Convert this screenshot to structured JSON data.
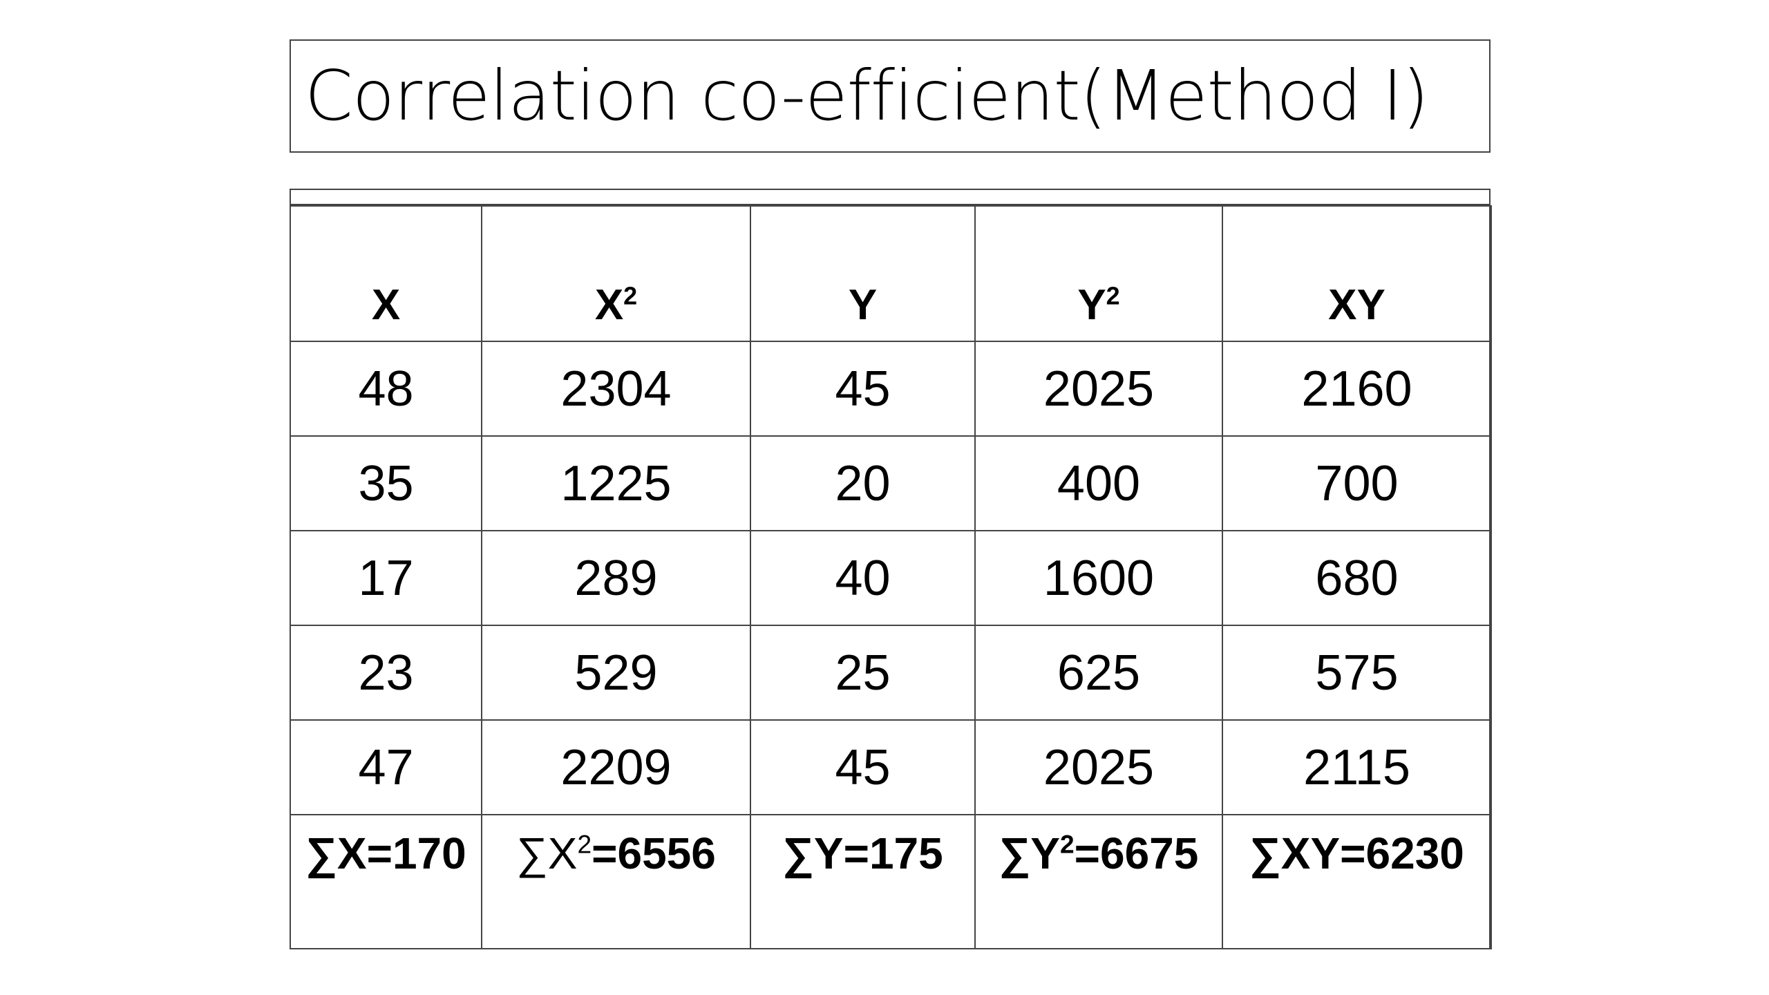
{
  "title": "Correlation co-efficient(Method I)",
  "table": {
    "headers": [
      {
        "base": "X",
        "sup": ""
      },
      {
        "base": "X",
        "sup": "2"
      },
      {
        "base": "Y",
        "sup": ""
      },
      {
        "base": "Y",
        "sup": "2"
      },
      {
        "base": "XY",
        "sup": ""
      }
    ],
    "rows": [
      [
        "48",
        "2304",
        "45",
        "2025",
        "2160"
      ],
      [
        "35",
        "1225",
        "20",
        "400",
        "700"
      ],
      [
        "17",
        "289",
        "40",
        "1600",
        "680"
      ],
      [
        "23",
        "529",
        "25",
        "625",
        "575"
      ],
      [
        "47",
        "2209",
        "45",
        "2025",
        "2115"
      ]
    ],
    "sums": [
      {
        "prefix": "∑X",
        "sup": "",
        "value": "=170"
      },
      {
        "prefix": "∑X",
        "sup": "2",
        "value": "=6556"
      },
      {
        "prefix": "∑Y",
        "sup": "",
        "value": "=175"
      },
      {
        "prefix": "∑Y",
        "sup": "2",
        "value": "=6675"
      },
      {
        "prefix": "∑XY",
        "sup": "",
        "value": "=6230"
      }
    ]
  }
}
